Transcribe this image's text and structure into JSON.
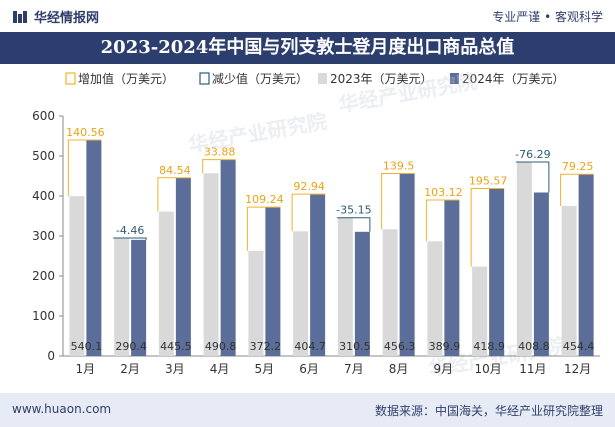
{
  "header": {
    "brand": "华经情报网",
    "tagline": "专业严谨 • 客观科学",
    "title": "2023-2024年中国与列支敦士登月度出口商品总值"
  },
  "footer": {
    "website": "www.huaon.com",
    "source": "数据来源：中国海关，华经产业研究院整理"
  },
  "watermark": "华经产业研究院",
  "chart_data": {
    "type": "bar",
    "categories": [
      "1月",
      "2月",
      "3月",
      "4月",
      "5月",
      "6月",
      "7月",
      "8月",
      "9月",
      "10月",
      "11月",
      "12月"
    ],
    "series": [
      {
        "name": "2023年（万美元）",
        "values": [
          399.54,
          294.86,
          360.96,
          456.92,
          262.96,
          311.76,
          345.65,
          316.8,
          286.78,
          223.33,
          485.09,
          375.15
        ]
      },
      {
        "name": "2024年（万美元）",
        "values": [
          540.1,
          290.4,
          445.5,
          490.8,
          372.2,
          404.7,
          310.5,
          456.3,
          389.9,
          418.9,
          408.8,
          454.4
        ]
      }
    ],
    "changes": [
      "140.56",
      "-4.46",
      "84.54",
      "33.88",
      "109.24",
      "92.94",
      "-35.15",
      "139.5",
      "103.12",
      "195.57",
      "-76.29",
      "79.25"
    ],
    "legend": [
      {
        "label": "增加值（万美元）",
        "kind": "increase",
        "color": "#f0b429"
      },
      {
        "label": "减少值（万美元）",
        "kind": "decrease",
        "color": "#2e5c7a"
      },
      {
        "label": "2023年（万美元）",
        "kind": "bar2023",
        "color": "#d9d9d9"
      },
      {
        "label": "2024年（万美元）",
        "kind": "bar2024",
        "color": "#5b6e99"
      }
    ],
    "ylim": [
      0,
      600
    ],
    "yticks": [
      "0",
      "100",
      "200",
      "300",
      "400",
      "500",
      "600"
    ],
    "legend_position": "top-left",
    "grid": false
  }
}
